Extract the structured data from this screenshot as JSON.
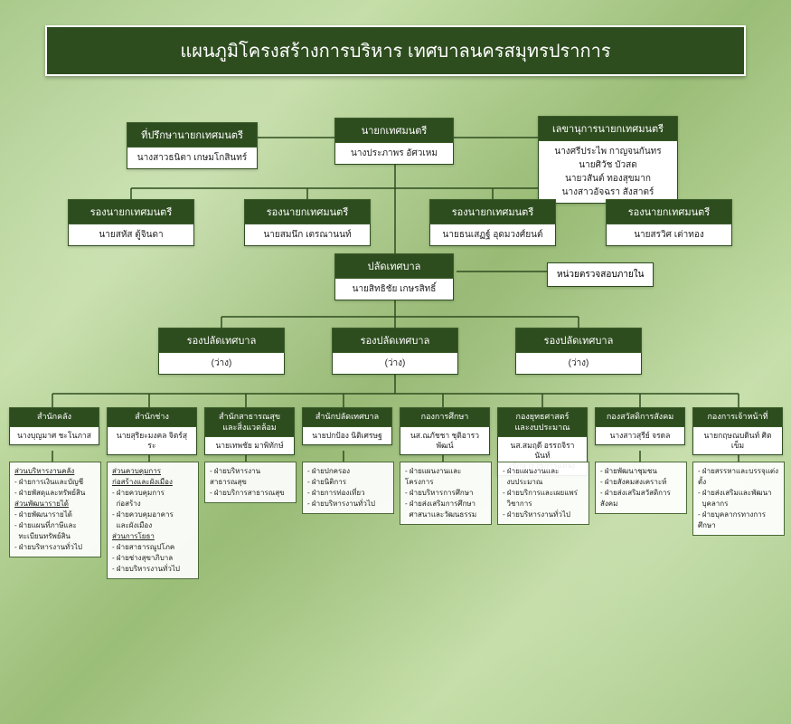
{
  "title": "แผนภูมิโครงสร้างการบริหาร เทศบาลนครสมุทรปราการ",
  "colors": {
    "header_bg": "#2e4d1f",
    "header_text": "#ffffff",
    "body_bg": "#ffffff",
    "body_text": "#222222",
    "line": "#2e4d1f",
    "page_bg": "#b7d396"
  },
  "mayor": {
    "title": "นายกเทศมนตรี",
    "name": "นางประภาพร   อัศวเหม"
  },
  "advisor": {
    "title": "ที่ปรึกษานายกเทศมนตรี",
    "name": "นางสาวธนิตา  เกษมโกสินทร์"
  },
  "secretary": {
    "title": "เลขานุการนายกเทศมนตรี",
    "names": [
      "นางศรีประไพ  กาญจนกันทร",
      "นายศิวัช  บัวสด",
      "นายวสันต์  ทองสุขมาก",
      "นางสาวอัจฉรา  สังสาตร์"
    ]
  },
  "deputy_mayors": [
    {
      "title": "รองนายกเทศมนตรี",
      "name": "นายสหัส  ตู้จินดา"
    },
    {
      "title": "รองนายกเทศมนตรี",
      "name": "นายสมนึก  เตรณานนท์"
    },
    {
      "title": "รองนายกเทศมนตรี",
      "name": "นายธนเสฏฐ์  อุดมวงศ์ยนต์"
    },
    {
      "title": "รองนายกเทศมนตรี",
      "name": "นายสรวิศ  เต่าทอง"
    }
  ],
  "clerk": {
    "title": "ปลัดเทศบาล",
    "name": "นายสิทธิชัย  เกษรสิทธิ์"
  },
  "internal_audit": {
    "label": "หน่วยตรวจสอบภายใน"
  },
  "deputy_clerks": [
    {
      "title": "รองปลัดเทศบาล",
      "name": "(ว่าง)"
    },
    {
      "title": "รองปลัดเทศบาล",
      "name": "(ว่าง)"
    },
    {
      "title": "รองปลัดเทศบาล",
      "name": "(ว่าง)"
    }
  ],
  "departments": [
    {
      "title": "สำนักคลัง",
      "name": "นางบุญมาศ ชะโนภาส",
      "details": "<span class='u'>ส่วนบริหารงานคลัง</span><br>- ฝ่ายการเงินและบัญชี<br>- ฝ่ายพัสดุและทรัพย์สิน<br><span class='u'>ส่วนพัฒนารายได้</span><br>- ฝ่ายพัฒนารายได้<br>- ฝ่ายแผนที่ภาษีและ<br>&nbsp;&nbsp;ทะเบียนทรัพย์สิน<br>- ฝ่ายบริหารงานทั่วไป"
    },
    {
      "title": "สำนักช่าง",
      "name": "นายสุริยะมงคล จิตร์สุระ",
      "details": "<span class='u'>ส่วนควบคุมการ<br>ก่อสร้างและผังเมือง</span><br>- ฝ่ายควบคุมการ<br>&nbsp;&nbsp;ก่อสร้าง<br>- ฝ่ายควบคุมอาคาร<br>&nbsp;&nbsp;และผังเมือง<br><span class='u'>ส่วนการโยธา</span><br>- ฝ่ายสาธารณูปโภค<br>- ฝ่ายช่างสุขาภิบาล<br>- ฝ่ายบริหารงานทั่วไป"
    },
    {
      "title": "สำนักสาธารณสุข<br>และสิ่งแวดล้อม",
      "name": "นายเทพชัย มาพิทักษ์",
      "details": "- ฝ่ายบริหารงานสาธารณสุข<br>- ฝ่ายบริการสาธารณสุข"
    },
    {
      "title": "สำนักปลัดเทศบาล",
      "name": "นายปกป้อง นิติเศรษฐ",
      "details": "- ฝ่ายปกครอง<br>- ฝ่ายนิติการ<br>- ฝ่ายการท่องเที่ยว<br>- ฝ่ายบริหารงานทั่วไป"
    },
    {
      "title": "กองการศึกษา",
      "name": "นส.ณภัชชา ชุติอารวพัฒน์",
      "details": "- ฝ่ายแผนงานและโครงการ<br>- ฝ่ายบริหารการศึกษา<br>- ฝ่ายส่งเสริมการศึกษา<br>&nbsp;&nbsp;ศาสนาและวัฒนธรรม"
    },
    {
      "title": "กองยุทธศาสตร์<br>และงบประมาณ",
      "name": "นส.สมฤดี อรรถจิรานันท์<br>(รักษาราชการแทน)",
      "details": "- ฝ่ายแผนงานและ<br>&nbsp;&nbsp;งบประมาณ<br>- ฝ่ายบริการและเผยแพร่<br>&nbsp;&nbsp;วิชาการ<br>- ฝ่ายบริหารงานทั่วไป"
    },
    {
      "title": "กองสวัสดิการสังคม",
      "name": "นางสาวสุรีย์ จรดล",
      "details": "- ฝ่ายพัฒนาชุมชน<br>- ฝ่ายสังคมสงเคราะห์<br>- ฝ่ายส่งเสริมสวัสดิการสังคม"
    },
    {
      "title": "กองการเจ้าหน้าที่",
      "name": "นายกฤษณบดินท์ ศิตเข็ม",
      "details": "- ฝ่ายสรรหาและบรรจุแต่งตั้ง<br>- ฝ่ายส่งเสริมและพัฒนา<br>&nbsp;&nbsp;บุคลากร<br>- ฝ่ายบุคลากรทางการศึกษา"
    }
  ]
}
